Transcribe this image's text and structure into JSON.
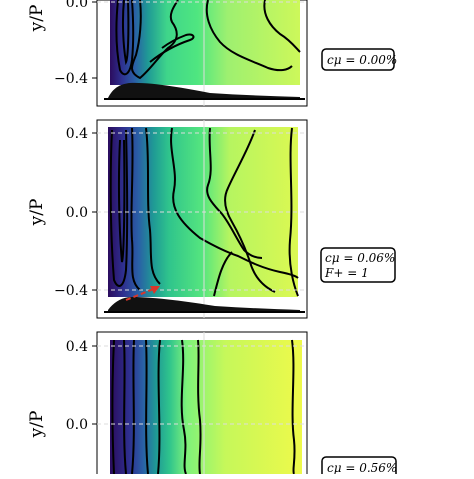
{
  "chart_data": [
    {
      "type": "heatmap",
      "panel": "top",
      "ylabel": "y/P",
      "y_ticks": [
        {
          "value": 0.0,
          "label": "0.0"
        },
        {
          "value": -0.4,
          "label": "−0.4"
        }
      ],
      "annotation": [
        "cμ = 0.00%"
      ],
      "flow_control_arrow": false
    },
    {
      "type": "heatmap",
      "panel": "middle",
      "ylabel": "y/P",
      "y_ticks": [
        {
          "value": 0.4,
          "label": "0.4"
        },
        {
          "value": 0.0,
          "label": "0.0"
        },
        {
          "value": -0.4,
          "label": "−0.4"
        }
      ],
      "annotation": [
        "cμ = 0.06%",
        "F+ = 1"
      ],
      "flow_control_arrow": true
    },
    {
      "type": "heatmap",
      "panel": "bottom",
      "ylabel": "y/P",
      "y_ticks": [
        {
          "value": 0.4,
          "label": "0.4"
        },
        {
          "value": 0.0,
          "label": "0.0"
        }
      ],
      "annotation": [
        "cμ = 0.56%"
      ],
      "flow_control_arrow": false
    }
  ],
  "colors": {
    "colormap": [
      "#2b0c5e",
      "#2e2f8f",
      "#2a5fa6",
      "#1f9a95",
      "#2fc48c",
      "#3fe08a",
      "#7ef27a",
      "#c6f85a",
      "#e8f94c"
    ],
    "contour_line": "#000000",
    "gridline": "#dddddd",
    "arrow": "#d9362a"
  }
}
